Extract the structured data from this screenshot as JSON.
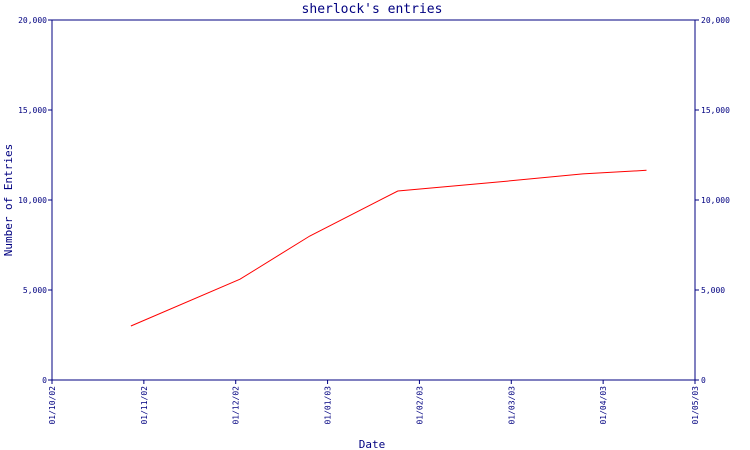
{
  "chart_data": {
    "type": "line",
    "title": "sherlock's entries",
    "xlabel": "Date",
    "ylabel": "Number of Entries",
    "x_tick_labels": [
      "01/10/02",
      "01/11/02",
      "01/12/02",
      "01/01/03",
      "01/02/03",
      "01/03/03",
      "01/04/03",
      "01/05/03"
    ],
    "y_tick_labels": [
      "0",
      "5,000",
      "10,000",
      "15,000",
      "20,000"
    ],
    "y_ticks": [
      0,
      5000,
      10000,
      15000,
      20000
    ],
    "ylim": [
      0,
      20000
    ],
    "xlim": [
      "2002-10-01",
      "2003-05-01"
    ],
    "x": [
      "2002-10-27",
      "2002-12-02",
      "2002-12-25",
      "2003-01-23",
      "2003-02-25",
      "2003-03-25",
      "2003-04-15"
    ],
    "series": [
      {
        "values": [
          3000,
          5600,
          8000,
          10500,
          11000,
          11450,
          11650
        ]
      }
    ],
    "grid": false,
    "colors": {
      "line": "#ff0000",
      "axis": "#000080"
    }
  }
}
